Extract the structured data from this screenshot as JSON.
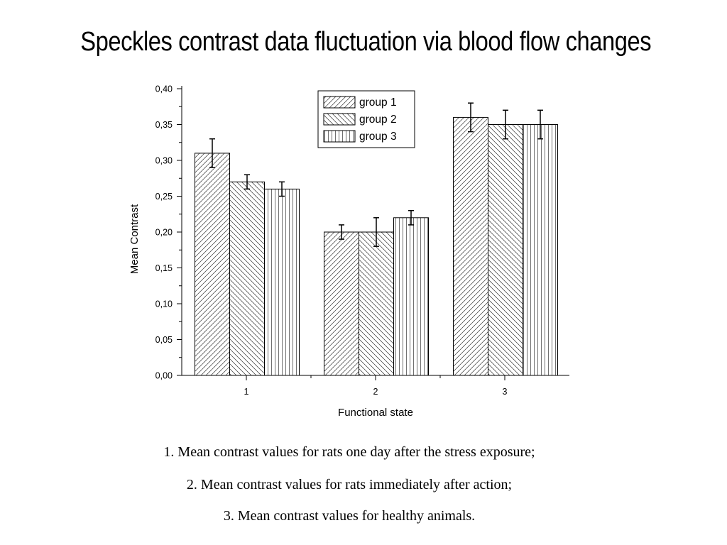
{
  "slide": {
    "title": "Speckles contrast data fluctuation via blood flow changes"
  },
  "captions": [
    "1.   Mean contrast values for rats one day after the stress exposure;",
    "2. Mean contrast values for rats immediately after action;",
    "3. Mean contrast values for healthy animals."
  ],
  "chart_data": {
    "type": "bar",
    "title": "",
    "xlabel": "Functional state",
    "ylabel": "Mean Contrast",
    "categories": [
      "1",
      "2",
      "3"
    ],
    "ylim": [
      0,
      0.4
    ],
    "yticks": [
      "0,00",
      "0,05",
      "0,10",
      "0,15",
      "0,20",
      "0,25",
      "0,30",
      "0,35",
      "0,40"
    ],
    "legend_position": "top-center",
    "grid": false,
    "series": [
      {
        "name": "group 1",
        "pattern": "diagonal-up",
        "values": [
          0.31,
          0.2,
          0.36
        ],
        "errors": [
          0.02,
          0.01,
          0.02
        ]
      },
      {
        "name": "group 2",
        "pattern": "diagonal-down",
        "values": [
          0.27,
          0.2,
          0.35
        ],
        "errors": [
          0.01,
          0.02,
          0.02
        ]
      },
      {
        "name": "group 3",
        "pattern": "vertical",
        "values": [
          0.26,
          0.22,
          0.35
        ],
        "errors": [
          0.01,
          0.01,
          0.02
        ]
      }
    ]
  }
}
